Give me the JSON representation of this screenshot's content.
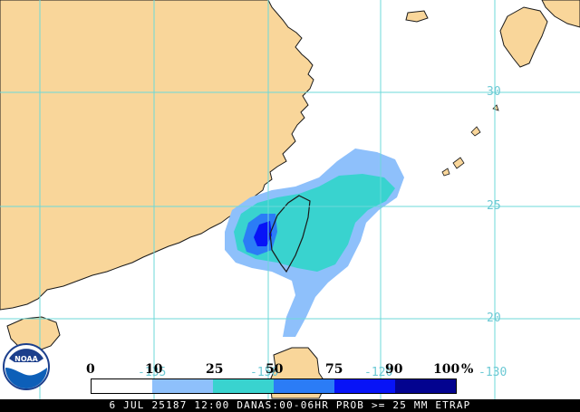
{
  "map": {
    "colors": {
      "land": "#f9d69a",
      "ocean": "#ffffff",
      "grid": "#6cd9d9",
      "coast": "#1a1a1a"
    },
    "latitude_labels": [
      {
        "text": "30",
        "lat": 30
      },
      {
        "text": "25",
        "lat": 25
      },
      {
        "text": "20",
        "lat": 20
      }
    ],
    "longitude_labels": [
      {
        "text": "-135",
        "lon": -135
      },
      {
        "text": "-150",
        "lon": -150
      },
      {
        "text": "-120",
        "lon": -120
      },
      {
        "text": "-130",
        "lon": -130
      }
    ]
  },
  "legend": {
    "ticks": [
      "0",
      "10",
      "25",
      "50",
      "75",
      "90",
      "100"
    ],
    "unit": "%",
    "colors": [
      "#ffffff",
      "#8ec0fb",
      "#39d3cf",
      "#2b7cf6",
      "#0713f7",
      "#03038f"
    ]
  },
  "caption": "6 JUL 25187 12:00 DANAS:00-06HR PROB >= 25 MM ETRAP",
  "logo": {
    "text": "NOAA",
    "icon": "noaa-logo-icon"
  }
}
